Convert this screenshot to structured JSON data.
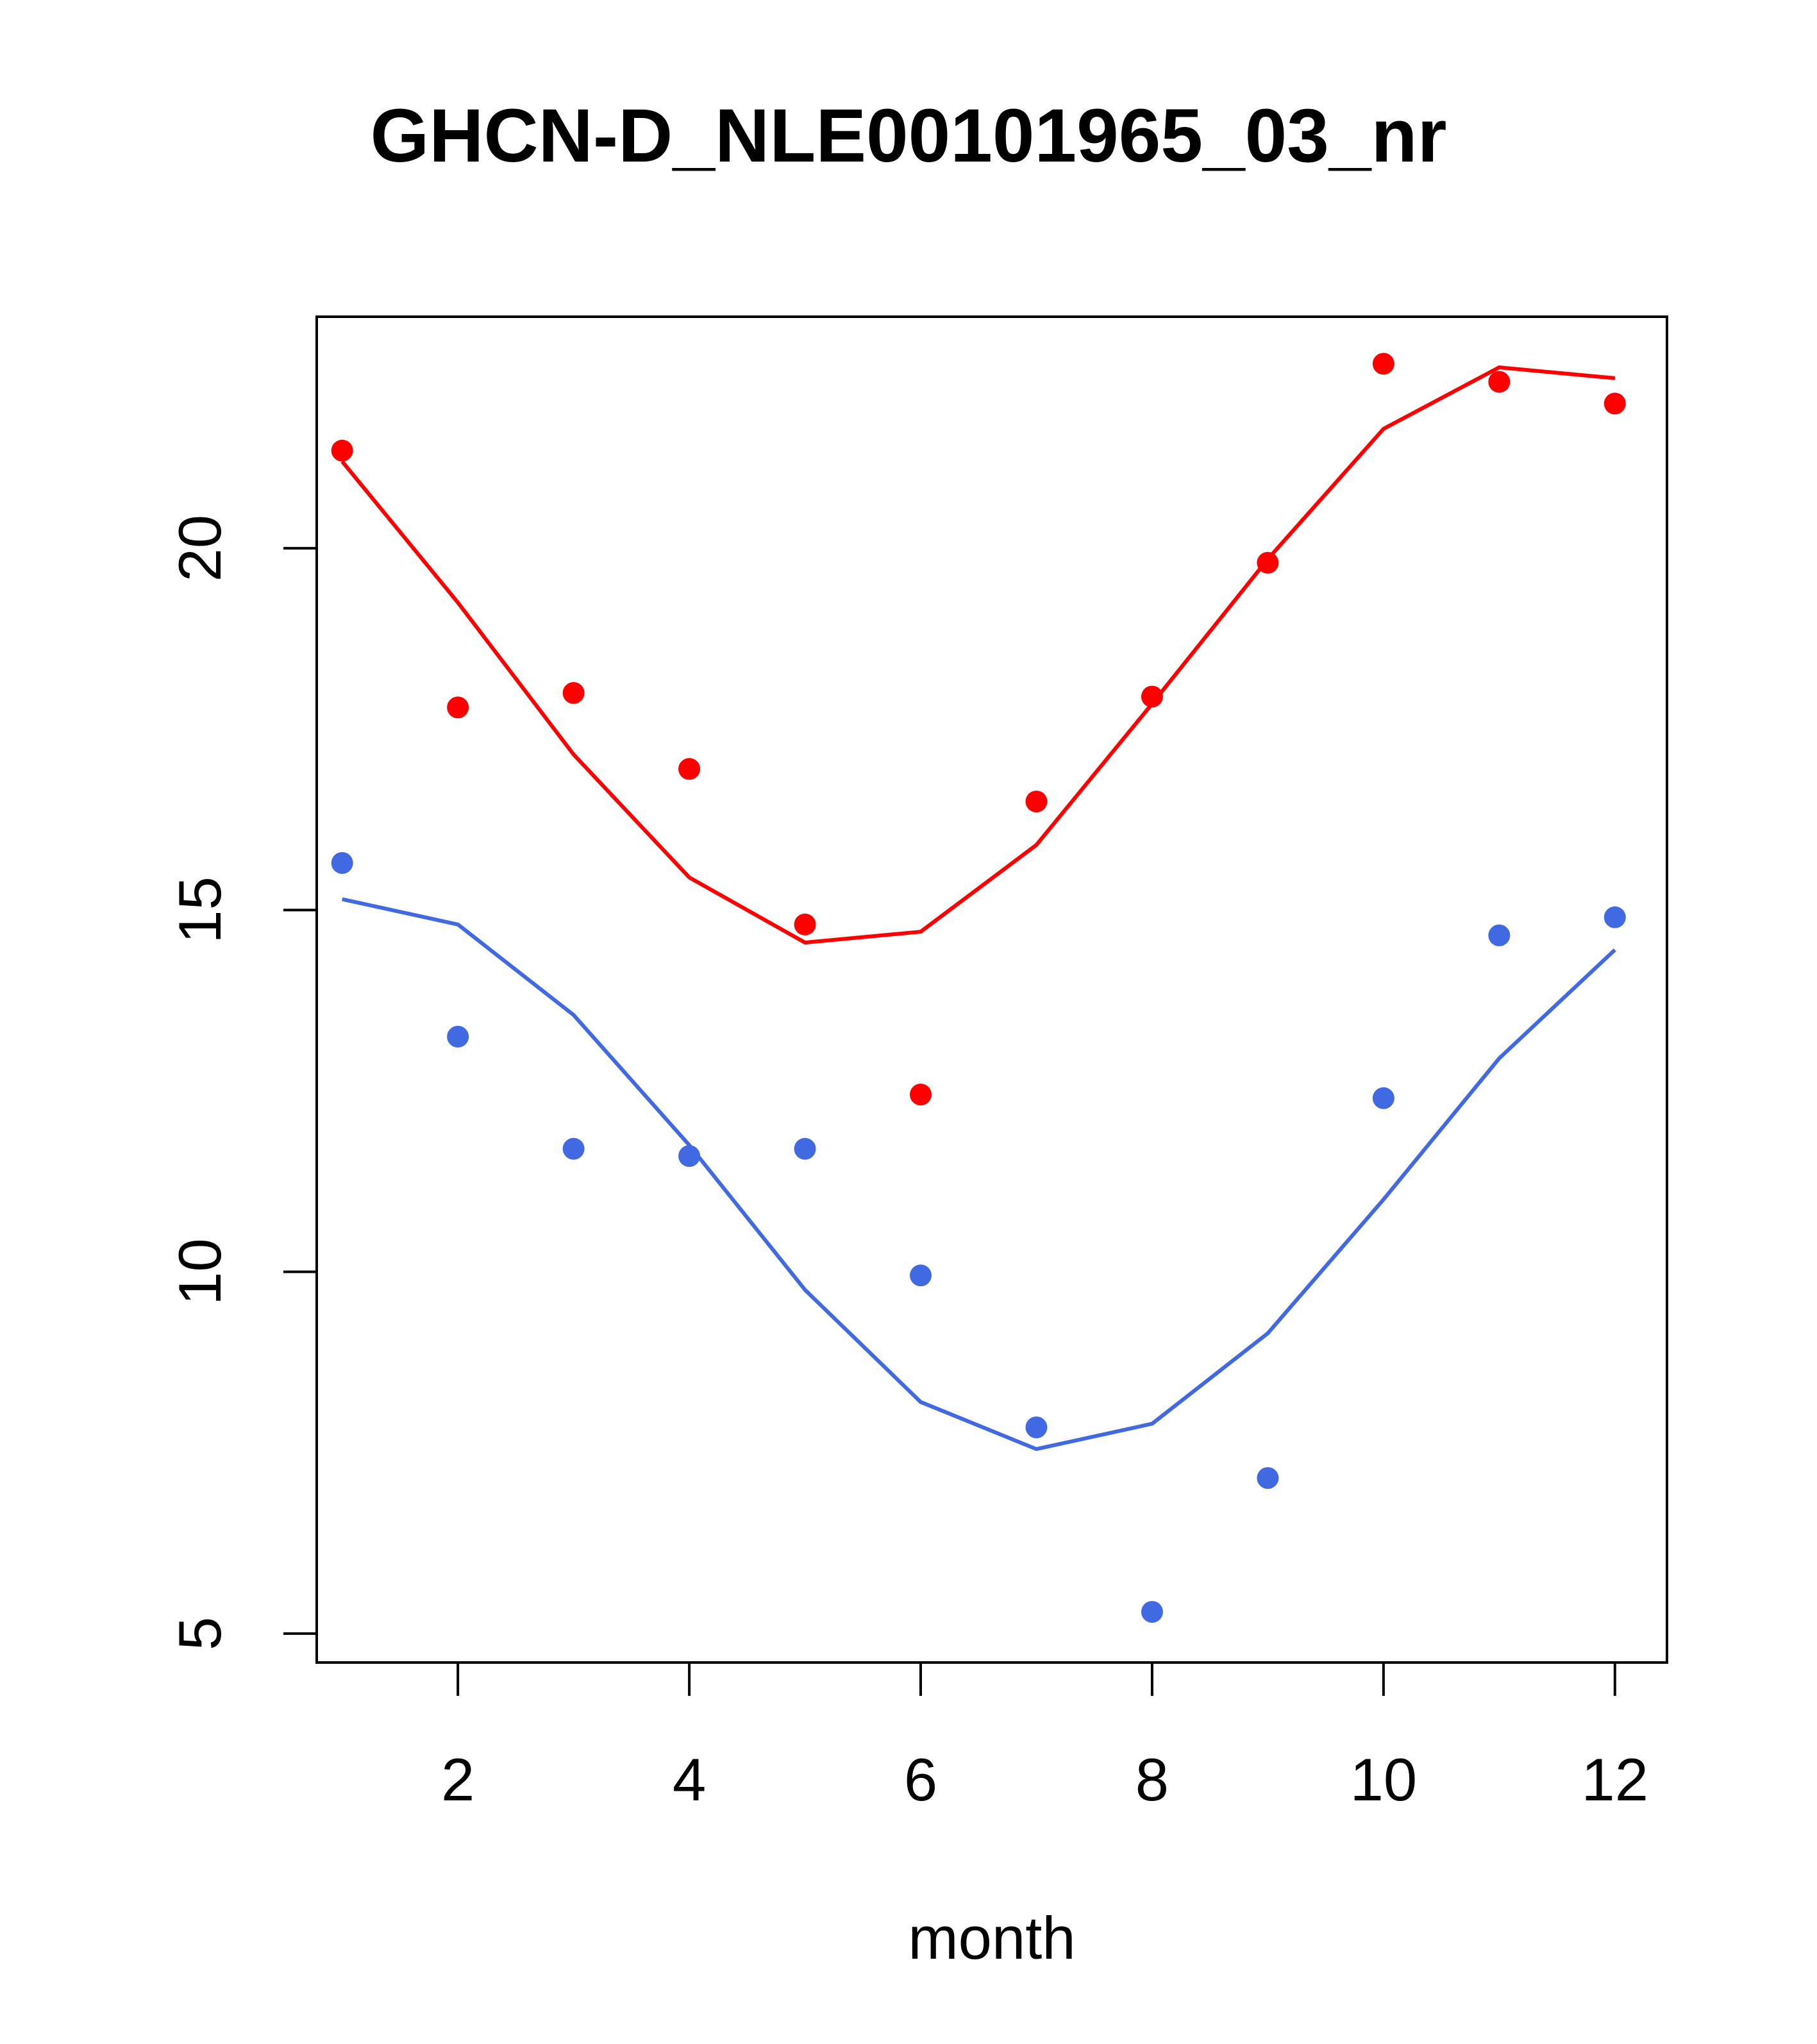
{
  "chart_data": {
    "type": "scatter",
    "title": "GHCN-D_NLE00101965_03_nr",
    "xlabel": "month",
    "ylabel": "",
    "xlim": [
      0.78,
      12.45
    ],
    "ylim": [
      4.6,
      23.2
    ],
    "xticks": [
      2,
      4,
      6,
      8,
      10,
      12
    ],
    "xtick_labels": [
      "2",
      "4",
      "6",
      "8",
      "10",
      "12"
    ],
    "yticks": [
      5,
      10,
      15,
      20
    ],
    "ytick_labels": [
      "5",
      "10",
      "15",
      "20"
    ],
    "grid": false,
    "series": [
      {
        "color": "#ff0000",
        "points": {
          "x": [
            1,
            2,
            3,
            4,
            5,
            6,
            7,
            8,
            9,
            10,
            11,
            12
          ],
          "y": [
            21.35,
            17.8,
            18.0,
            16.95,
            14.8,
            12.45,
            16.5,
            17.95,
            19.8,
            22.55,
            22.3,
            22.0
          ]
        },
        "line": {
          "x": [
            1,
            2,
            3,
            4,
            5,
            6,
            7,
            8,
            9,
            10,
            11,
            12
          ],
          "y": [
            21.2,
            19.25,
            17.15,
            15.45,
            14.55,
            14.7,
            15.9,
            17.85,
            19.85,
            21.65,
            22.5,
            22.35
          ]
        }
      },
      {
        "color": "#4169e1",
        "points": {
          "x": [
            1,
            2,
            3,
            4,
            5,
            6,
            7,
            8,
            9,
            10,
            11,
            12
          ],
          "y": [
            15.65,
            13.25,
            11.7,
            11.6,
            11.7,
            9.95,
            7.85,
            5.3,
            7.15,
            12.4,
            14.65,
            14.9
          ]
        },
        "line": {
          "x": [
            1,
            2,
            3,
            4,
            5,
            6,
            7,
            8,
            9,
            10,
            11,
            12
          ],
          "y": [
            15.15,
            14.8,
            13.55,
            11.75,
            9.75,
            8.2,
            7.55,
            7.9,
            9.15,
            11.0,
            12.95,
            14.45
          ]
        }
      }
    ]
  }
}
